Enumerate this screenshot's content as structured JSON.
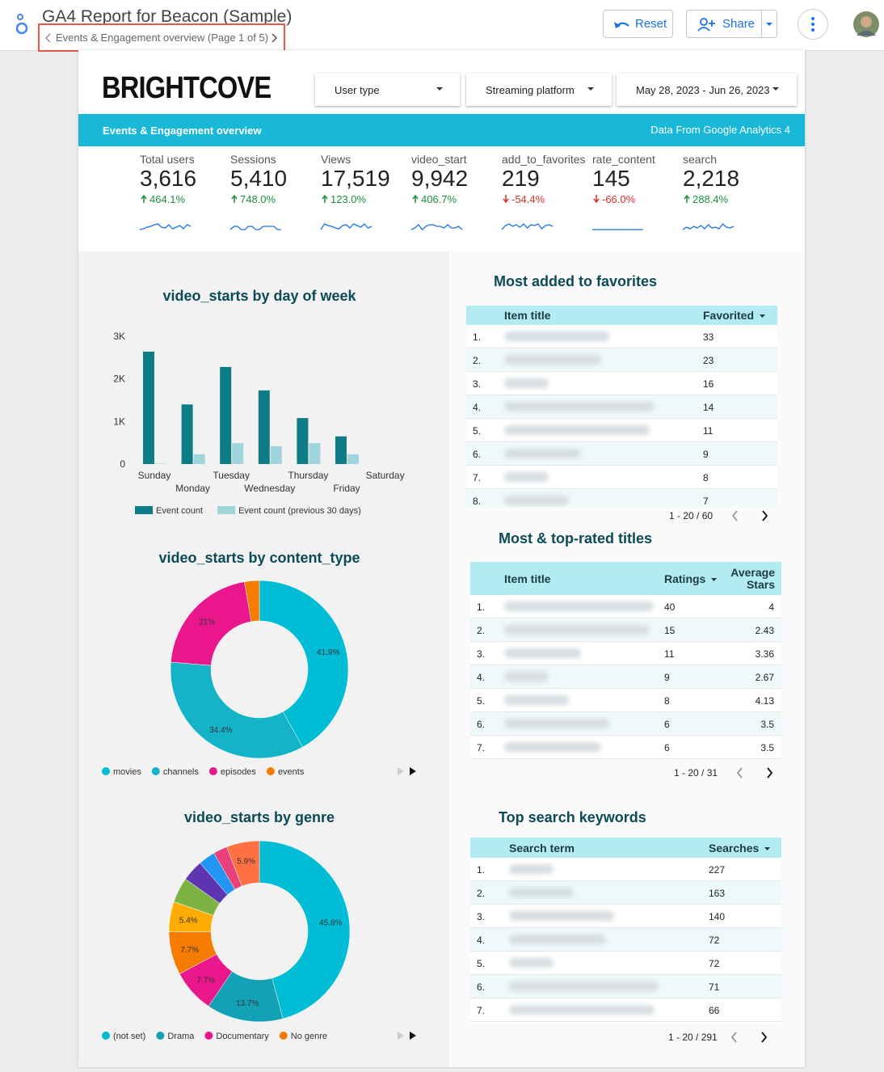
{
  "header": {
    "title": "GA4 Report for Beacon (Sample)",
    "page_nav": "Events & Engagement overview (Page 1 of 5)",
    "reset": "Reset",
    "share": "Share"
  },
  "logo": "BRIGHTCOVE",
  "filters": [
    "User type",
    "Streaming platform",
    "May 28, 2023 - Jun 26, 2023"
  ],
  "banner": {
    "title": "Events & Engagement overview",
    "source": "Data From Google Analytics 4"
  },
  "scorecards": [
    {
      "label": "Total users",
      "value": "3,616",
      "change": "464.1%",
      "trend": "up"
    },
    {
      "label": "Sessions",
      "value": "5,410",
      "change": "748.0%",
      "trend": "up"
    },
    {
      "label": "Views",
      "value": "17,519",
      "change": "123.0%",
      "trend": "up"
    },
    {
      "label": "video_start",
      "value": "9,942",
      "change": "406.7%",
      "trend": "up"
    },
    {
      "label": "add_to_favorites",
      "value": "219",
      "change": "-54.4%",
      "trend": "down"
    },
    {
      "label": "rate_content",
      "value": "145",
      "change": "-66.0%",
      "trend": "down"
    },
    {
      "label": "search",
      "value": "2,218",
      "change": "288.4%",
      "trend": "up"
    }
  ],
  "chart_data": [
    {
      "type": "bar",
      "title": "video_starts by day of week",
      "categories": [
        "Sunday",
        "Monday",
        "Tuesday",
        "Wednesday",
        "Thursday",
        "Friday",
        "Saturday"
      ],
      "series": [
        {
          "name": "Event count",
          "color": "#0e7c86",
          "values": [
            2640,
            1400,
            2280,
            1730,
            1080,
            650,
            0
          ]
        },
        {
          "name": "Event count (previous 30 days)",
          "color": "#9fd4da",
          "values": [
            10,
            230,
            490,
            420,
            490,
            230,
            0
          ]
        }
      ],
      "ylim": [
        0,
        3000
      ],
      "yticks": [
        0,
        {
          "value": 1000,
          "label": "1K"
        },
        {
          "value": 2000,
          "label": "2K"
        },
        {
          "value": 3000,
          "label": "3K"
        }
      ],
      "grid": false
    },
    {
      "type": "pie",
      "donut": true,
      "title": "video_starts by content_type",
      "categories": [
        "movies",
        "channels",
        "episodes",
        "events"
      ],
      "values": [
        41.9,
        34.4,
        21,
        2.7
      ],
      "value_labels": [
        "41.9%",
        "34.4%",
        "21%",
        null
      ],
      "colors": [
        "#00bcd4",
        "#14b3c8",
        "#e9168c",
        "#f57c00"
      ]
    },
    {
      "type": "pie",
      "donut": true,
      "title": "video_starts by genre",
      "categories": [
        "(not set)",
        "Drama",
        "Documentary",
        "No genre",
        null,
        null,
        null,
        null,
        null,
        null
      ],
      "values": [
        45.8,
        13.7,
        7.7,
        7.7,
        5.4,
        4.5,
        3.8,
        3,
        2.5,
        5.9
      ],
      "value_labels": [
        "45.8%",
        "13.7%",
        "7.7%",
        "7.7%",
        "5.4%",
        null,
        null,
        null,
        null,
        "5.9%"
      ],
      "colors": [
        "#00bcd4",
        "#12a1b5",
        "#e9168c",
        "#f57c00",
        "#ffab00",
        "#7cb342",
        "#5e35b1",
        "#2196f3",
        "#ec407a",
        "#ff7043"
      ]
    }
  ],
  "tables": [
    {
      "title": "Most added to favorites",
      "columns": [
        "Item title",
        "Favorited"
      ],
      "sort_column": 1,
      "rows": [
        [
          "1.",
          33
        ],
        [
          "2.",
          23
        ],
        [
          "3.",
          16
        ],
        [
          "4.",
          14
        ],
        [
          "5.",
          11
        ],
        [
          "6.",
          9
        ],
        [
          "7.",
          8
        ],
        [
          "8.",
          7
        ]
      ],
      "pagination": "1 - 20 / 60"
    },
    {
      "title": "Most & top-rated titles",
      "columns": [
        "Item title",
        "Ratings",
        "Average Stars"
      ],
      "sort_column": 1,
      "rows": [
        [
          "1.",
          40,
          4
        ],
        [
          "2.",
          15,
          2.43
        ],
        [
          "3.",
          11,
          3.36
        ],
        [
          "4.",
          9,
          2.67
        ],
        [
          "5.",
          8,
          4.13
        ],
        [
          "6.",
          6,
          3.5
        ],
        [
          "7.",
          6,
          3.5
        ]
      ],
      "pagination": "1 - 20 / 31"
    },
    {
      "title": "Top search keywords",
      "columns": [
        "Search term",
        "Searches"
      ],
      "sort_column": 1,
      "rows": [
        [
          "1.",
          227
        ],
        [
          "2.",
          163
        ],
        [
          "3.",
          140
        ],
        [
          "4.",
          72
        ],
        [
          "5.",
          72
        ],
        [
          "6.",
          71
        ],
        [
          "7.",
          66
        ]
      ],
      "pagination": "1 - 20 / 291"
    }
  ]
}
